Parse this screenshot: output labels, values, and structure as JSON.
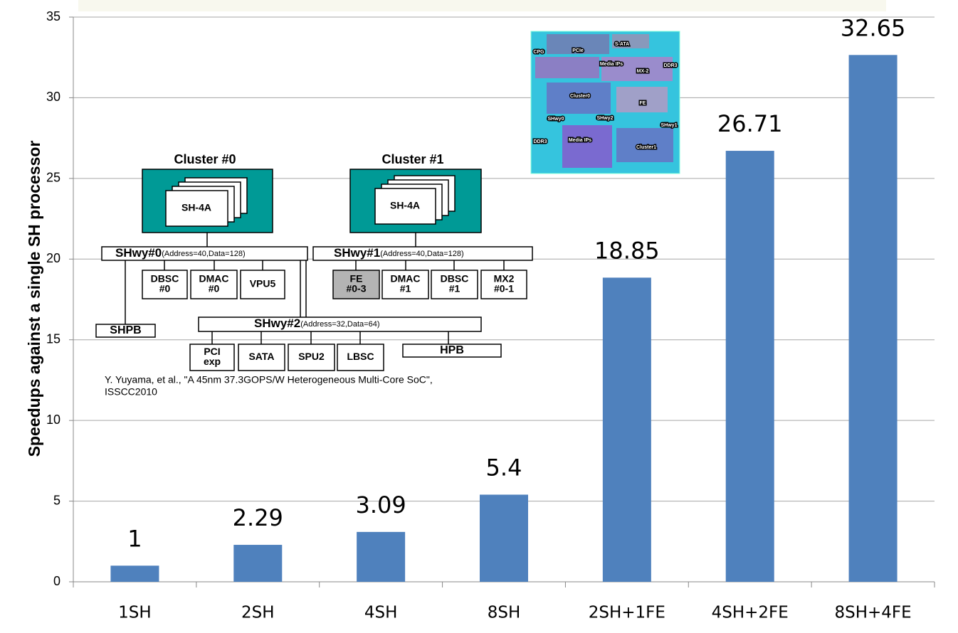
{
  "chart_data": {
    "type": "bar",
    "y_label": "Speedups against a single SH processor",
    "categories": [
      "1SH",
      "2SH",
      "4SH",
      "8SH",
      "2SH+1FE",
      "4SH+2FE",
      "8SH+4FE"
    ],
    "values": [
      1,
      2.29,
      3.09,
      5.4,
      18.85,
      26.71,
      32.65
    ],
    "color": "#4f81bd",
    "ylim": [
      0,
      35
    ],
    "yticks": [
      0,
      5,
      10,
      15,
      20,
      25,
      30,
      35
    ],
    "grid": true
  },
  "diagram": {
    "clusters": [
      {
        "title": "Cluster #0",
        "core": "SH-4A"
      },
      {
        "title": "Cluster #1",
        "core": "SH-4A"
      }
    ],
    "buses": [
      {
        "name": "SHwy#0",
        "detail": "(Address=40,Data=128)"
      },
      {
        "name": "SHwy#1",
        "detail": "(Address=40,Data=128)"
      },
      {
        "name": "SHwy#2",
        "detail": "(Address=32,Data=64)"
      }
    ],
    "blocks": [
      [
        "DBSC",
        "#0"
      ],
      [
        "DMAC",
        "#0"
      ],
      [
        "VPU5"
      ],
      [
        "FE",
        "#0-3"
      ],
      [
        "DMAC",
        "#1"
      ],
      [
        "DBSC",
        "#1"
      ],
      [
        "MX2",
        "#0-1"
      ],
      [
        "SHPB"
      ],
      [
        "PCI",
        "exp"
      ],
      [
        "SATA"
      ],
      [
        "SPU2"
      ],
      [
        "LBSC"
      ],
      [
        "HPB"
      ]
    ],
    "citation": [
      "Y. Yuyama, et al., \"A 45nm 37.3GOPS/W Heterogeneous Multi-Core SoC\",",
      "ISSCC2010"
    ]
  },
  "die_labels": [
    "CPG",
    "PCIe",
    "S-ATA",
    "Media IPs",
    "MX-2",
    "DDR3",
    "Cluster0",
    "FE",
    "SHwy0",
    "SHwy2",
    "SHwy1",
    "DDR3",
    "Media IPs",
    "Cluster1"
  ]
}
